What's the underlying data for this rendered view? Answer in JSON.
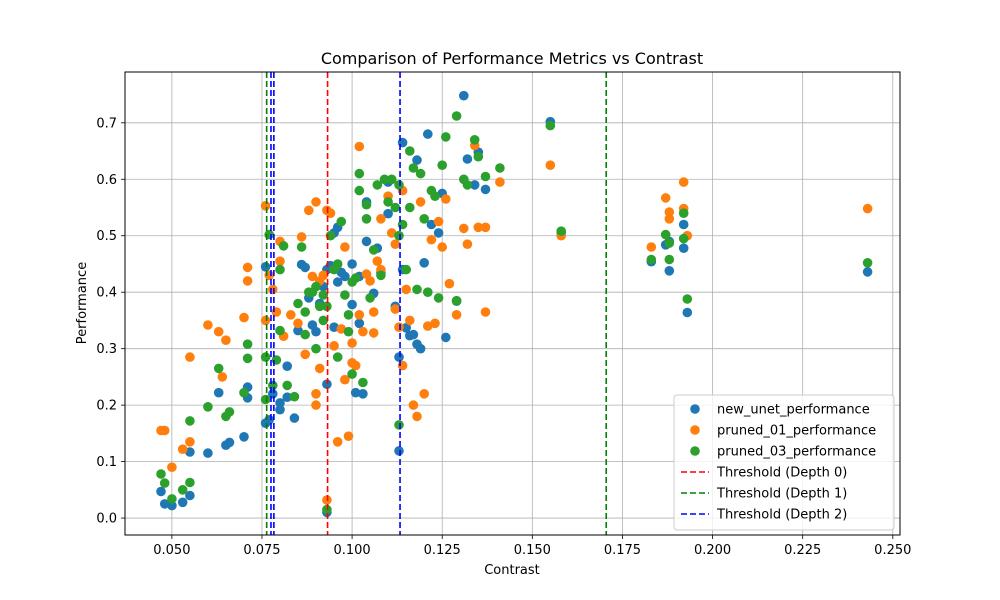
{
  "chart_data": {
    "type": "scatter",
    "title": "Comparison of Performance Metrics vs Contrast",
    "xlabel": "Contrast",
    "ylabel": "Performance",
    "xlim": [
      0.037,
      0.252
    ],
    "ylim": [
      -0.03,
      0.79
    ],
    "x_ticks": [
      0.05,
      0.075,
      0.1,
      0.125,
      0.15,
      0.175,
      0.2,
      0.225,
      0.25
    ],
    "x_tick_labels": [
      "0.050",
      "0.075",
      "0.100",
      "0.125",
      "0.150",
      "0.175",
      "0.200",
      "0.225",
      "0.250"
    ],
    "y_ticks": [
      0.0,
      0.1,
      0.2,
      0.3,
      0.4,
      0.5,
      0.6,
      0.7
    ],
    "y_tick_labels": [
      "0.0",
      "0.1",
      "0.2",
      "0.3",
      "0.4",
      "0.5",
      "0.6",
      "0.7"
    ],
    "grid": true,
    "legend_position": "lower-right",
    "series": [
      {
        "name": "new_unet_performance",
        "color": "#1f77b4",
        "points": [
          [
            0.047,
            0.047
          ],
          [
            0.048,
            0.025
          ],
          [
            0.05,
            0.022
          ],
          [
            0.053,
            0.028
          ],
          [
            0.055,
            0.04
          ],
          [
            0.055,
            0.117
          ],
          [
            0.06,
            0.115
          ],
          [
            0.063,
            0.222
          ],
          [
            0.065,
            0.129
          ],
          [
            0.066,
            0.134
          ],
          [
            0.07,
            0.144
          ],
          [
            0.071,
            0.232
          ],
          [
            0.071,
            0.213
          ],
          [
            0.076,
            0.168
          ],
          [
            0.076,
            0.445
          ],
          [
            0.077,
            0.174
          ],
          [
            0.078,
            0.22
          ],
          [
            0.08,
            0.204
          ],
          [
            0.08,
            0.192
          ],
          [
            0.082,
            0.214
          ],
          [
            0.082,
            0.269
          ],
          [
            0.084,
            0.177
          ],
          [
            0.085,
            0.332
          ],
          [
            0.086,
            0.449
          ],
          [
            0.087,
            0.444
          ],
          [
            0.088,
            0.39
          ],
          [
            0.089,
            0.342
          ],
          [
            0.09,
            0.33
          ],
          [
            0.091,
            0.38
          ],
          [
            0.092,
            0.41
          ],
          [
            0.093,
            0.237
          ],
          [
            0.093,
            0.44
          ],
          [
            0.094,
            0.447
          ],
          [
            0.095,
            0.338
          ],
          [
            0.095,
            0.505
          ],
          [
            0.096,
            0.515
          ],
          [
            0.097,
            0.435
          ],
          [
            0.098,
            0.428
          ],
          [
            0.1,
            0.378
          ],
          [
            0.1,
            0.45
          ],
          [
            0.101,
            0.222
          ],
          [
            0.102,
            0.428
          ],
          [
            0.102,
            0.345
          ],
          [
            0.103,
            0.22
          ],
          [
            0.104,
            0.49
          ],
          [
            0.106,
            0.398
          ],
          [
            0.107,
            0.478
          ],
          [
            0.108,
            0.435
          ],
          [
            0.11,
            0.539
          ],
          [
            0.112,
            0.375
          ],
          [
            0.113,
            0.285
          ],
          [
            0.113,
            0.119
          ],
          [
            0.114,
            0.44
          ],
          [
            0.115,
            0.337
          ],
          [
            0.116,
            0.323
          ],
          [
            0.117,
            0.325
          ],
          [
            0.118,
            0.308
          ],
          [
            0.119,
            0.3
          ],
          [
            0.12,
            0.452
          ],
          [
            0.122,
            0.52
          ],
          [
            0.124,
            0.505
          ],
          [
            0.125,
            0.575
          ],
          [
            0.126,
            0.32
          ],
          [
            0.129,
            0.384
          ],
          [
            0.131,
            0.748
          ],
          [
            0.132,
            0.636
          ],
          [
            0.134,
            0.59
          ],
          [
            0.135,
            0.648
          ],
          [
            0.137,
            0.582
          ],
          [
            0.118,
            0.634
          ],
          [
            0.121,
            0.68
          ],
          [
            0.155,
            0.702
          ],
          [
            0.158,
            0.505
          ],
          [
            0.183,
            0.454
          ],
          [
            0.187,
            0.484
          ],
          [
            0.188,
            0.438
          ],
          [
            0.188,
            0.49
          ],
          [
            0.192,
            0.52
          ],
          [
            0.192,
            0.478
          ],
          [
            0.193,
            0.364
          ],
          [
            0.243,
            0.436
          ],
          [
            0.093,
            0.01
          ],
          [
            0.096,
            0.418
          ],
          [
            0.104,
            0.56
          ],
          [
            0.11,
            0.595
          ],
          [
            0.114,
            0.665
          ]
        ]
      },
      {
        "name": "pruned_01_performance",
        "color": "#ff7f0e",
        "points": [
          [
            0.047,
            0.155
          ],
          [
            0.048,
            0.155
          ],
          [
            0.05,
            0.09
          ],
          [
            0.053,
            0.122
          ],
          [
            0.055,
            0.285
          ],
          [
            0.055,
            0.135
          ],
          [
            0.06,
            0.342
          ],
          [
            0.063,
            0.33
          ],
          [
            0.064,
            0.25
          ],
          [
            0.065,
            0.315
          ],
          [
            0.07,
            0.355
          ],
          [
            0.071,
            0.444
          ],
          [
            0.071,
            0.42
          ],
          [
            0.076,
            0.553
          ],
          [
            0.076,
            0.35
          ],
          [
            0.077,
            0.43
          ],
          [
            0.078,
            0.405
          ],
          [
            0.079,
            0.365
          ],
          [
            0.08,
            0.455
          ],
          [
            0.08,
            0.49
          ],
          [
            0.081,
            0.322
          ],
          [
            0.083,
            0.36
          ],
          [
            0.085,
            0.345
          ],
          [
            0.086,
            0.498
          ],
          [
            0.087,
            0.29
          ],
          [
            0.088,
            0.545
          ],
          [
            0.089,
            0.428
          ],
          [
            0.09,
            0.2
          ],
          [
            0.09,
            0.22
          ],
          [
            0.09,
            0.56
          ],
          [
            0.091,
            0.42
          ],
          [
            0.092,
            0.43
          ],
          [
            0.093,
            0.032
          ],
          [
            0.093,
            0.545
          ],
          [
            0.094,
            0.54
          ],
          [
            0.095,
            0.305
          ],
          [
            0.096,
            0.135
          ],
          [
            0.097,
            0.335
          ],
          [
            0.098,
            0.245
          ],
          [
            0.099,
            0.145
          ],
          [
            0.1,
            0.275
          ],
          [
            0.1,
            0.31
          ],
          [
            0.101,
            0.27
          ],
          [
            0.102,
            0.36
          ],
          [
            0.102,
            0.658
          ],
          [
            0.103,
            0.33
          ],
          [
            0.104,
            0.432
          ],
          [
            0.105,
            0.42
          ],
          [
            0.106,
            0.328
          ],
          [
            0.107,
            0.455
          ],
          [
            0.108,
            0.53
          ],
          [
            0.11,
            0.57
          ],
          [
            0.111,
            0.505
          ],
          [
            0.112,
            0.37
          ],
          [
            0.113,
            0.338
          ],
          [
            0.114,
            0.27
          ],
          [
            0.115,
            0.405
          ],
          [
            0.116,
            0.35
          ],
          [
            0.117,
            0.2
          ],
          [
            0.118,
            0.18
          ],
          [
            0.119,
            0.56
          ],
          [
            0.12,
            0.22
          ],
          [
            0.121,
            0.34
          ],
          [
            0.122,
            0.493
          ],
          [
            0.123,
            0.345
          ],
          [
            0.124,
            0.525
          ],
          [
            0.125,
            0.48
          ],
          [
            0.126,
            0.565
          ],
          [
            0.127,
            0.415
          ],
          [
            0.129,
            0.36
          ],
          [
            0.131,
            0.513
          ],
          [
            0.132,
            0.485
          ],
          [
            0.134,
            0.66
          ],
          [
            0.135,
            0.515
          ],
          [
            0.137,
            0.365
          ],
          [
            0.137,
            0.515
          ],
          [
            0.141,
            0.595
          ],
          [
            0.155,
            0.625
          ],
          [
            0.158,
            0.5
          ],
          [
            0.183,
            0.48
          ],
          [
            0.187,
            0.567
          ],
          [
            0.188,
            0.53
          ],
          [
            0.188,
            0.542
          ],
          [
            0.192,
            0.595
          ],
          [
            0.192,
            0.548
          ],
          [
            0.193,
            0.5
          ],
          [
            0.243,
            0.548
          ],
          [
            0.091,
            0.265
          ],
          [
            0.098,
            0.48
          ],
          [
            0.106,
            0.365
          ],
          [
            0.108,
            0.44
          ],
          [
            0.112,
            0.485
          ],
          [
            0.114,
            0.58
          ]
        ]
      },
      {
        "name": "pruned_03_performance",
        "color": "#2ca02c",
        "points": [
          [
            0.047,
            0.078
          ],
          [
            0.048,
            0.062
          ],
          [
            0.05,
            0.034
          ],
          [
            0.053,
            0.05
          ],
          [
            0.055,
            0.063
          ],
          [
            0.055,
            0.172
          ],
          [
            0.06,
            0.197
          ],
          [
            0.063,
            0.265
          ],
          [
            0.065,
            0.18
          ],
          [
            0.066,
            0.188
          ],
          [
            0.07,
            0.222
          ],
          [
            0.071,
            0.283
          ],
          [
            0.071,
            0.308
          ],
          [
            0.076,
            0.21
          ],
          [
            0.076,
            0.285
          ],
          [
            0.077,
            0.502
          ],
          [
            0.078,
            0.235
          ],
          [
            0.079,
            0.28
          ],
          [
            0.08,
            0.332
          ],
          [
            0.08,
            0.44
          ],
          [
            0.081,
            0.482
          ],
          [
            0.082,
            0.235
          ],
          [
            0.084,
            0.215
          ],
          [
            0.085,
            0.38
          ],
          [
            0.086,
            0.48
          ],
          [
            0.087,
            0.365
          ],
          [
            0.088,
            0.4
          ],
          [
            0.089,
            0.4
          ],
          [
            0.09,
            0.3
          ],
          [
            0.09,
            0.41
          ],
          [
            0.091,
            0.375
          ],
          [
            0.092,
            0.35
          ],
          [
            0.093,
            0.015
          ],
          [
            0.093,
            0.375
          ],
          [
            0.094,
            0.5
          ],
          [
            0.095,
            0.44
          ],
          [
            0.096,
            0.285
          ],
          [
            0.097,
            0.525
          ],
          [
            0.098,
            0.395
          ],
          [
            0.099,
            0.36
          ],
          [
            0.1,
            0.418
          ],
          [
            0.1,
            0.255
          ],
          [
            0.101,
            0.425
          ],
          [
            0.102,
            0.58
          ],
          [
            0.102,
            0.61
          ],
          [
            0.103,
            0.24
          ],
          [
            0.104,
            0.53
          ],
          [
            0.105,
            0.39
          ],
          [
            0.106,
            0.475
          ],
          [
            0.107,
            0.59
          ],
          [
            0.108,
            0.43
          ],
          [
            0.11,
            0.56
          ],
          [
            0.111,
            0.6
          ],
          [
            0.112,
            0.55
          ],
          [
            0.113,
            0.165
          ],
          [
            0.113,
            0.5
          ],
          [
            0.114,
            0.52
          ],
          [
            0.115,
            0.44
          ],
          [
            0.116,
            0.55
          ],
          [
            0.117,
            0.62
          ],
          [
            0.118,
            0.405
          ],
          [
            0.119,
            0.61
          ],
          [
            0.12,
            0.53
          ],
          [
            0.121,
            0.4
          ],
          [
            0.122,
            0.58
          ],
          [
            0.123,
            0.57
          ],
          [
            0.124,
            0.39
          ],
          [
            0.125,
            0.625
          ],
          [
            0.126,
            0.675
          ],
          [
            0.129,
            0.385
          ],
          [
            0.129,
            0.712
          ],
          [
            0.131,
            0.6
          ],
          [
            0.132,
            0.59
          ],
          [
            0.134,
            0.67
          ],
          [
            0.135,
            0.64
          ],
          [
            0.137,
            0.605
          ],
          [
            0.141,
            0.62
          ],
          [
            0.155,
            0.695
          ],
          [
            0.158,
            0.508
          ],
          [
            0.183,
            0.458
          ],
          [
            0.187,
            0.502
          ],
          [
            0.188,
            0.458
          ],
          [
            0.188,
            0.487
          ],
          [
            0.192,
            0.54
          ],
          [
            0.192,
            0.495
          ],
          [
            0.193,
            0.388
          ],
          [
            0.243,
            0.452
          ],
          [
            0.087,
            0.325
          ],
          [
            0.092,
            0.395
          ],
          [
            0.096,
            0.45
          ],
          [
            0.099,
            0.33
          ],
          [
            0.104,
            0.555
          ],
          [
            0.109,
            0.6
          ],
          [
            0.113,
            0.59
          ],
          [
            0.116,
            0.65
          ]
        ]
      }
    ],
    "thresholds": [
      {
        "name": "Threshold (Depth 0)",
        "color": "#ff0000",
        "values": [
          0.0932
        ]
      },
      {
        "name": "Threshold (Depth 1)",
        "color": "#008000",
        "values": [
          0.0763,
          0.1705
        ]
      },
      {
        "name": "Threshold (Depth 2)",
        "color": "#0000ff",
        "values": [
          0.0775,
          0.0783,
          0.1133
        ]
      }
    ]
  }
}
